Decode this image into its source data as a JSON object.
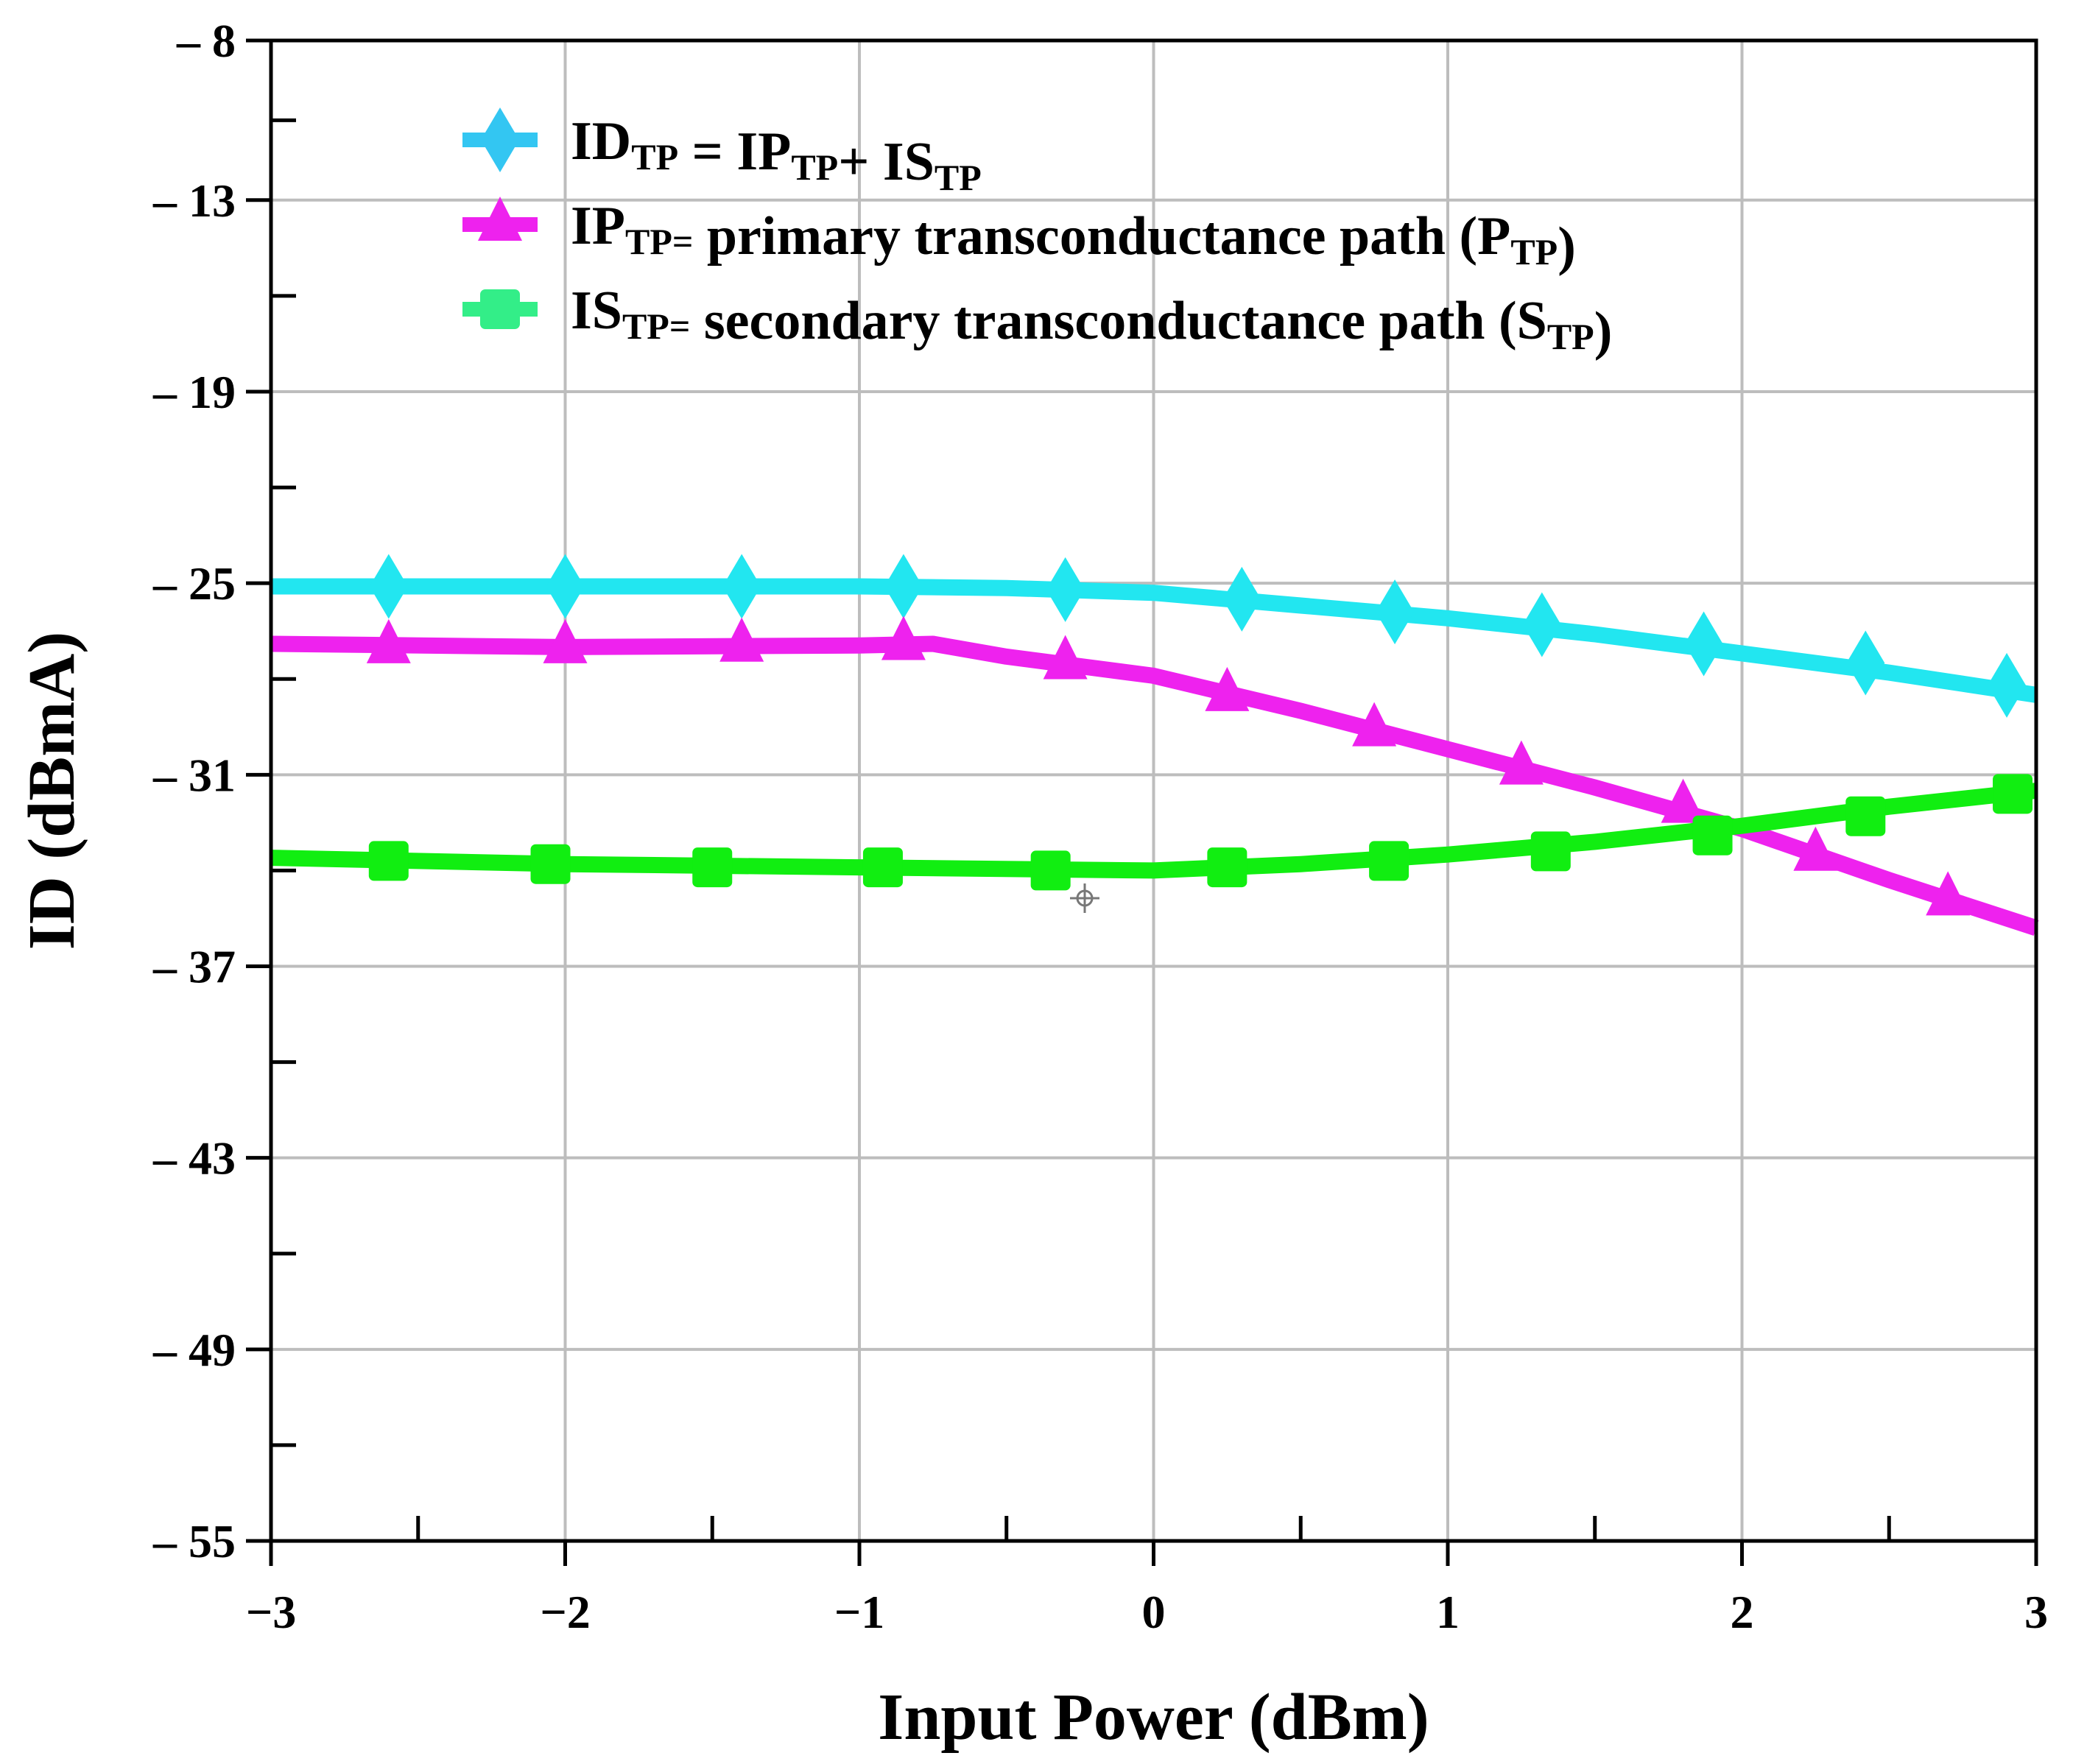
{
  "chart_data": {
    "type": "line",
    "xlabel": "Input Power (dBm)",
    "ylabel": "ID (dBmA)",
    "xlim": [
      -3,
      3
    ],
    "ylim": [
      -55,
      -8
    ],
    "x_ticks": [
      -3,
      -2,
      -1,
      0,
      1,
      2,
      3
    ],
    "x_tick_labels": [
      "−3",
      "−2",
      "−1",
      "0",
      "1",
      "2",
      "3"
    ],
    "y_ticks": [
      -8,
      -13,
      -19,
      -25,
      -31,
      -37,
      -43,
      -49,
      -55
    ],
    "y_tick_labels": [
      "– 8",
      "– 13",
      "– 19",
      "– 25",
      "– 31",
      "– 37",
      "– 43",
      "– 49",
      "– 55"
    ],
    "grid": true,
    "legend_position": "top",
    "series": [
      {
        "name": "ID = IP + IS",
        "legend": {
          "base": "ID",
          "sub1": "TP",
          "mid": " = IP",
          "sub2": "TP",
          "mid2": "+ IS",
          "sub3": "TP",
          "tail": ""
        },
        "color": "#22e6f0",
        "legend_color": "#33c6f2",
        "marker": "diamond",
        "line": {
          "x": [
            -3.0,
            -2.0,
            -1.0,
            -0.5,
            0.0,
            0.5,
            1.0,
            1.5,
            2.0,
            2.5,
            3.0
          ],
          "y": [
            -25.1,
            -25.1,
            -25.1,
            -25.15,
            -25.3,
            -25.7,
            -26.1,
            -26.6,
            -27.2,
            -27.8,
            -28.5
          ]
        },
        "markers": {
          "x": [
            -2.6,
            -2.0,
            -1.4,
            -0.85,
            -0.3,
            0.3,
            0.82,
            1.32,
            1.87,
            2.42,
            2.9
          ],
          "y": [
            -25.1,
            -25.1,
            -25.1,
            -25.1,
            -25.2,
            -25.5,
            -25.9,
            -26.3,
            -26.9,
            -27.5,
            -28.2
          ]
        }
      },
      {
        "name": "IP = primary transconductance path (P)",
        "legend": {
          "base": "IP",
          "sub1": "TP=",
          "mid": " primary transconductance path (P",
          "sub2": "TP",
          "mid2": ")",
          "sub3": "",
          "tail": ""
        },
        "color": "#ee22ee",
        "legend_color": "#ee22ee",
        "marker": "triangle",
        "line": {
          "x": [
            -3.0,
            -2.0,
            -1.0,
            -0.75,
            -0.5,
            0.0,
            0.5,
            1.0,
            1.5,
            2.0,
            2.5,
            3.0
          ],
          "y": [
            -26.9,
            -27.0,
            -26.95,
            -26.9,
            -27.3,
            -27.9,
            -29.0,
            -30.2,
            -31.4,
            -32.7,
            -34.3,
            -35.8
          ]
        },
        "markers": {
          "x": [
            -2.6,
            -2.0,
            -1.4,
            -0.85,
            -0.3,
            0.25,
            0.75,
            1.25,
            1.8,
            2.25,
            2.7
          ],
          "y": [
            -27.0,
            -27.0,
            -26.95,
            -26.9,
            -27.5,
            -28.5,
            -29.6,
            -30.8,
            -32.0,
            -33.5,
            -34.9
          ]
        }
      },
      {
        "name": "IS = secondary transconductance path (S)",
        "legend": {
          "base": "IS",
          "sub1": "TP=",
          "mid": " secondary transconductance  path (S",
          "sub2": "TP",
          "mid2": ")",
          "sub3": "",
          "tail": ""
        },
        "color": "#11ee11",
        "legend_color": "#33ee88",
        "marker": "square",
        "line": {
          "x": [
            -3.0,
            -2.0,
            -1.0,
            0.0,
            0.5,
            1.0,
            1.5,
            2.0,
            2.5,
            3.0
          ],
          "y": [
            -33.6,
            -33.8,
            -33.9,
            -34.0,
            -33.8,
            -33.5,
            -33.1,
            -32.6,
            -32.0,
            -31.5
          ]
        },
        "markers": {
          "x": [
            -2.6,
            -2.05,
            -1.5,
            -0.92,
            -0.35,
            0.25,
            0.8,
            1.35,
            1.9,
            2.42,
            2.92
          ],
          "y": [
            -33.7,
            -33.8,
            -33.9,
            -33.9,
            -34.0,
            -33.9,
            -33.7,
            -33.4,
            -32.9,
            -32.3,
            -31.6
          ]
        }
      }
    ]
  }
}
